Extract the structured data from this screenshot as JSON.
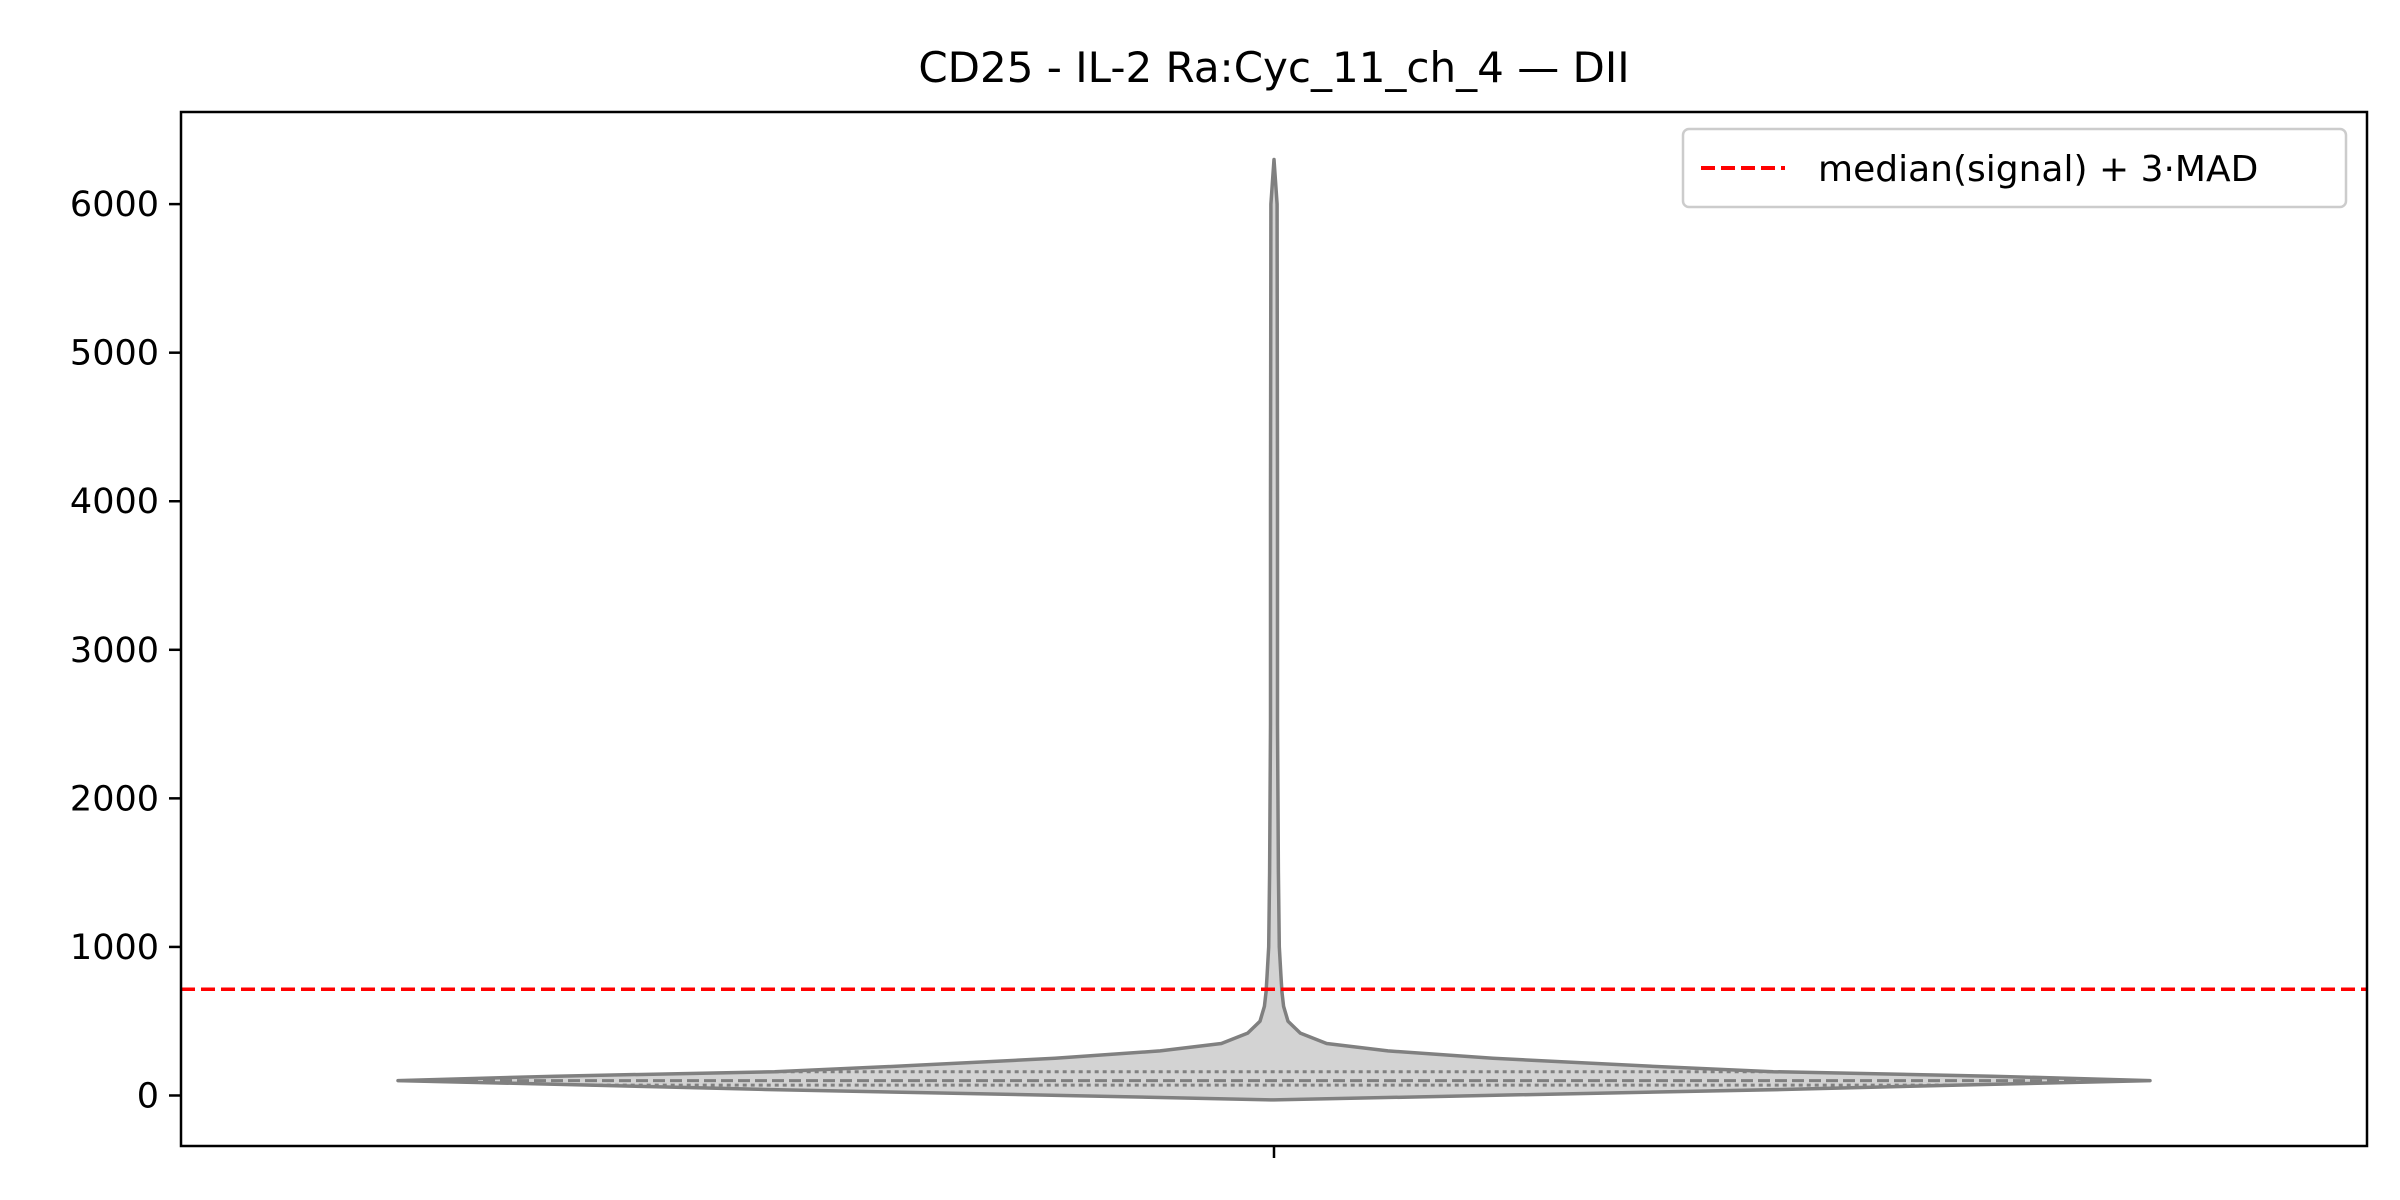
{
  "chart_data": {
    "type": "violin",
    "title": "CD25 - IL-2 Ra:Cyc_11_ch_4 — DII",
    "xlabel": "",
    "ylabel": "",
    "ylim": [
      -340,
      6620
    ],
    "yticks": [
      0,
      1000,
      2000,
      3000,
      4000,
      5000,
      6000
    ],
    "grid": false,
    "legend": {
      "placement": "top-right",
      "entries": [
        {
          "label": "median(signal) + 3·MAD",
          "style": "dashed",
          "color": "#ff0000"
        }
      ]
    },
    "threshold": {
      "value": 715,
      "label": "median(signal) + 3·MAD",
      "color": "#ff0000"
    },
    "violin": {
      "fill_color": "#d3d3d3",
      "edge_color": "#808080",
      "min": -30,
      "max": 6300,
      "quartiles": [
        70,
        100,
        160
      ],
      "density_profile": [
        [
          -30,
          0.0
        ],
        [
          0,
          0.24
        ],
        [
          40,
          0.58
        ],
        [
          70,
          0.78
        ],
        [
          100,
          1.0
        ],
        [
          130,
          0.82
        ],
        [
          160,
          0.57
        ],
        [
          200,
          0.42
        ],
        [
          250,
          0.25
        ],
        [
          300,
          0.13
        ],
        [
          350,
          0.06
        ],
        [
          420,
          0.03
        ],
        [
          500,
          0.016
        ],
        [
          600,
          0.011
        ],
        [
          700,
          0.009
        ],
        [
          800,
          0.008
        ],
        [
          1000,
          0.006
        ],
        [
          1500,
          0.005
        ],
        [
          2500,
          0.004
        ],
        [
          4000,
          0.004
        ],
        [
          6000,
          0.0035
        ],
        [
          6300,
          0.0
        ]
      ]
    }
  }
}
